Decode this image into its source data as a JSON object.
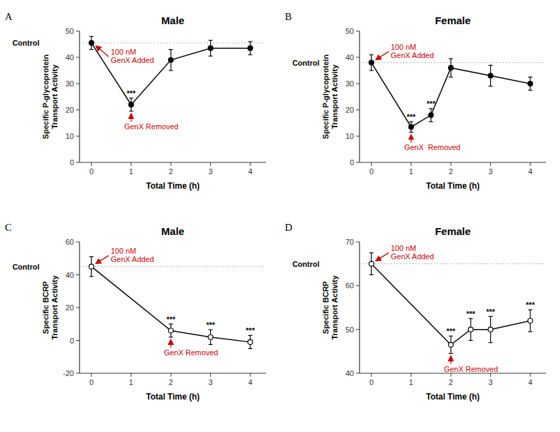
{
  "chart_data": [
    {
      "type": "line",
      "panel_label": "A",
      "title": "Male",
      "x_label": "Total Time (h)",
      "y_label": "Specific P-glycoprotein\nTransport Activity",
      "x": [
        0,
        1,
        2,
        3,
        4
      ],
      "series": [
        {
          "values": [
            45.5,
            22.0,
            39.0,
            43.5,
            43.5
          ],
          "errors": [
            2.5,
            2.5,
            4.0,
            3.0,
            2.5
          ],
          "color": "#000000",
          "marker": "filled-circle",
          "line_style": "solid",
          "point_labels": [
            null,
            "***",
            null,
            null,
            null
          ]
        }
      ],
      "reference_line": {
        "label": "Control",
        "value": 45.5,
        "color": "#999999",
        "line_style": "dotted"
      },
      "annotations": [
        {
          "text": "100 nM\nGenX Added",
          "x": 0,
          "y": 45.5,
          "color": "#CC0000"
        },
        {
          "text": "GenX Removed",
          "x": 1,
          "y": 19.5,
          "color": "#CC0000"
        }
      ],
      "xlim": [
        -0.3,
        4.4
      ],
      "ylim": [
        0,
        50
      ],
      "xticks": [
        0,
        1,
        2,
        3,
        4
      ],
      "yticks": [
        0,
        10,
        20,
        30,
        40,
        50
      ],
      "grid": false
    },
    {
      "type": "line",
      "panel_label": "B",
      "title": "Female",
      "x_label": "Total Time (h)",
      "y_label": "Specific P-glycoprotein\nTransport Activity",
      "x": [
        0,
        1,
        1.5,
        2,
        3,
        4
      ],
      "series": [
        {
          "values": [
            38.0,
            13.5,
            18.0,
            36.0,
            33.0,
            30.0
          ],
          "errors": [
            3.0,
            2.0,
            2.5,
            3.5,
            4.0,
            2.5
          ],
          "color": "#000000",
          "marker": "filled-circle",
          "line_style": "solid",
          "point_labels": [
            null,
            "***",
            "***",
            null,
            null,
            null
          ]
        }
      ],
      "reference_line": {
        "label": "Control",
        "value": 38.0,
        "color": "#999999",
        "line_style": "dotted"
      },
      "annotations": [
        {
          "text": "100 nM\nGenX Added",
          "x": 0,
          "y": 38.0,
          "color": "#CC0000"
        },
        {
          "text": "GenX  Removed",
          "x": 1,
          "y": 11.5,
          "color": "#CC0000"
        }
      ],
      "xlim": [
        -0.3,
        4.4
      ],
      "ylim": [
        0,
        50
      ],
      "xticks": [
        0,
        1,
        2,
        3,
        4
      ],
      "yticks": [
        0,
        10,
        20,
        30,
        40,
        50
      ],
      "grid": false
    },
    {
      "type": "line",
      "panel_label": "C",
      "title": "Male",
      "x_label": "Total Time (h)",
      "y_label": "Specific BCRP\nTransport Activity",
      "x": [
        0,
        2,
        3,
        4
      ],
      "series": [
        {
          "values": [
            45.0,
            6.0,
            2.0,
            -1.0
          ],
          "errors": [
            6.0,
            4.0,
            4.5,
            4.0
          ],
          "color": "#000000",
          "marker": "open-circle",
          "line_style": "solid",
          "point_labels": [
            null,
            "***",
            "***",
            "***"
          ]
        }
      ],
      "reference_line": {
        "label": "Control",
        "value": 45.0,
        "color": "#999999",
        "line_style": "dotted"
      },
      "annotations": [
        {
          "text": "100 nM\nGenX Added",
          "x": 0,
          "y": 45.0,
          "color": "#CC0000"
        },
        {
          "text": "GenX Removed",
          "x": 2,
          "y": 2.0,
          "color": "#CC0000"
        }
      ],
      "xlim": [
        -0.3,
        4.4
      ],
      "ylim": [
        -20,
        60
      ],
      "xticks": [
        0,
        1,
        2,
        3,
        4
      ],
      "yticks": [
        -20,
        0,
        20,
        40,
        60
      ],
      "grid": false
    },
    {
      "type": "line",
      "panel_label": "D",
      "title": "Female",
      "x_label": "Total Time (h)",
      "y_label": "Specific BCRP\nTransport Activity",
      "x": [
        0,
        2,
        2.5,
        3,
        4
      ],
      "series": [
        {
          "values": [
            65.0,
            46.5,
            50.0,
            50.0,
            52.0
          ],
          "errors": [
            2.5,
            2.0,
            2.5,
            3.0,
            2.5
          ],
          "color": "#000000",
          "marker": "open-circle",
          "line_style": "solid",
          "point_labels": [
            null,
            "***",
            "***",
            "***",
            "***"
          ]
        }
      ],
      "reference_line": {
        "label": "Control",
        "value": 65.0,
        "color": "#999999",
        "line_style": "dotted"
      },
      "annotations": [
        {
          "text": "100 nM\nGenX Added",
          "x": 0,
          "y": 65.0,
          "color": "#CC0000"
        },
        {
          "text": "GenX Removed",
          "x": 2,
          "y": 44.5,
          "color": "#CC0000"
        }
      ],
      "xlim": [
        -0.3,
        4.4
      ],
      "ylim": [
        40,
        70
      ],
      "xticks": [
        0,
        1,
        2,
        3,
        4
      ],
      "yticks": [
        40,
        50,
        60,
        70
      ],
      "grid": false
    }
  ]
}
